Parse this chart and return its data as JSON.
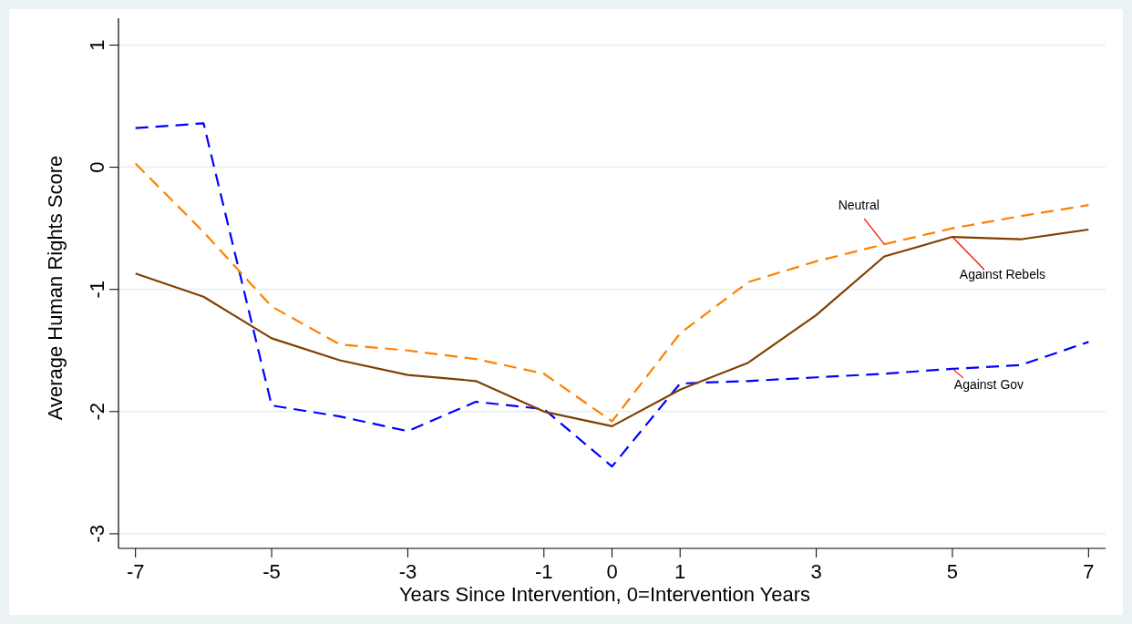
{
  "chart_data": {
    "type": "line",
    "xlabel": "Years Since Intervention, 0=Intervention Years",
    "ylabel": "Average Human Rights Score",
    "x": [
      -7,
      -6,
      -5,
      -4,
      -3,
      -2,
      -1,
      0,
      1,
      2,
      3,
      4,
      5,
      6,
      7
    ],
    "xlim": [
      -7.25,
      7.25
    ],
    "xticks": [
      -7,
      -5,
      -3,
      -1,
      0,
      1,
      3,
      5,
      7
    ],
    "ylim": [
      -3.12,
      1.22
    ],
    "yticks": [
      -3,
      -2,
      -1,
      0,
      1
    ],
    "grid": "y",
    "series": [
      {
        "name": "Against Gov",
        "color": "#0000ff",
        "line_style": "dashed",
        "values": [
          0.32,
          0.36,
          -1.95,
          -2.04,
          -2.16,
          -1.92,
          -1.98,
          -2.45,
          -1.77,
          -1.75,
          -1.72,
          -1.69,
          -1.65,
          -1.62,
          -1.43
        ]
      },
      {
        "name": "Neutral",
        "color": "#ff8000",
        "line_style": "dashed",
        "values": [
          0.03,
          -0.53,
          -1.14,
          -1.45,
          -1.5,
          -1.57,
          -1.69,
          -2.08,
          -1.36,
          -0.94,
          -0.77,
          -0.63,
          -0.5,
          -0.4,
          -0.31
        ]
      },
      {
        "name": "Against Rebels",
        "color": "#804000",
        "line_style": "solid",
        "values": [
          -0.87,
          -1.06,
          -1.4,
          -1.58,
          -1.7,
          -1.75,
          -2,
          -2.12,
          -1.82,
          -1.6,
          -1.21,
          -0.73,
          -0.57,
          -0.59,
          -0.51
        ]
      }
    ]
  }
}
